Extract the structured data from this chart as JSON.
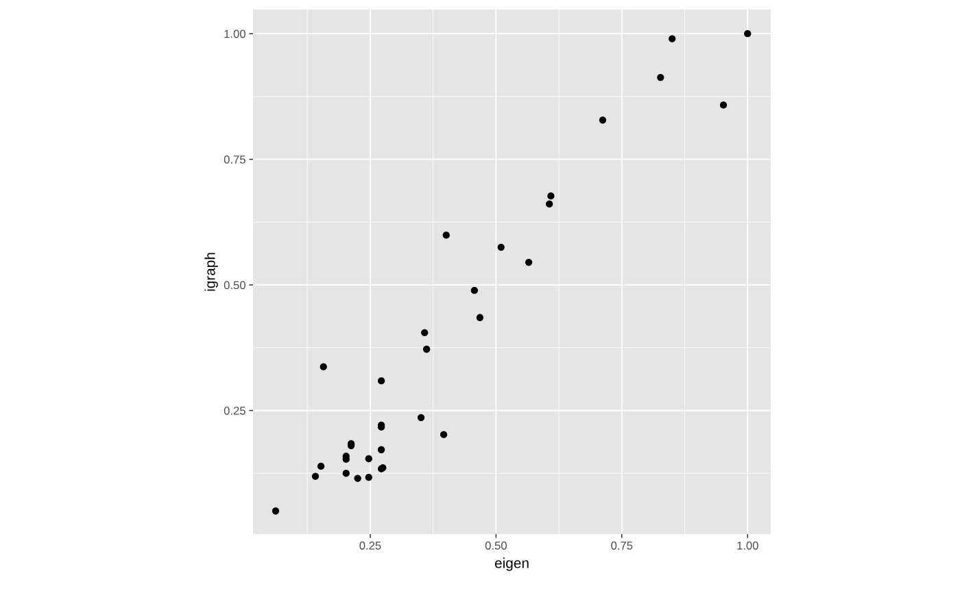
{
  "chart_data": {
    "type": "scatter",
    "xlabel": "eigen",
    "ylabel": "igraph",
    "x": [
      1.0,
      0.85,
      0.827,
      0.952,
      0.712,
      0.609,
      0.606,
      0.401,
      0.51,
      0.565,
      0.457,
      0.468,
      0.358,
      0.362,
      0.157,
      0.272,
      0.351,
      0.272,
      0.272,
      0.396,
      0.212,
      0.212,
      0.272,
      0.202,
      0.202,
      0.247,
      0.152,
      0.275,
      0.272,
      0.202,
      0.141,
      0.247,
      0.225,
      0.062
    ],
    "values": [
      1.0,
      0.99,
      0.913,
      0.858,
      0.828,
      0.677,
      0.661,
      0.599,
      0.575,
      0.545,
      0.489,
      0.435,
      0.405,
      0.372,
      0.337,
      0.309,
      0.236,
      0.221,
      0.217,
      0.202,
      0.184,
      0.18,
      0.172,
      0.159,
      0.153,
      0.154,
      0.139,
      0.136,
      0.134,
      0.125,
      0.119,
      0.117,
      0.115,
      0.05
    ],
    "color": "#000000",
    "marker": "circle",
    "xlim": [
      0.017,
      1.046
    ],
    "ylim": [
      0.004,
      1.048
    ],
    "xticks": [
      {
        "value": 0.25,
        "label": "0.25"
      },
      {
        "value": 0.5,
        "label": "0.50"
      },
      {
        "value": 0.75,
        "label": "0.75"
      },
      {
        "value": 1.0,
        "label": "1.00"
      }
    ],
    "yticks": [
      {
        "value": 0.25,
        "label": "0.25"
      },
      {
        "value": 0.5,
        "label": "0.50"
      },
      {
        "value": 0.75,
        "label": "0.75"
      },
      {
        "value": 1.0,
        "label": "1.00"
      }
    ],
    "grid": true
  }
}
